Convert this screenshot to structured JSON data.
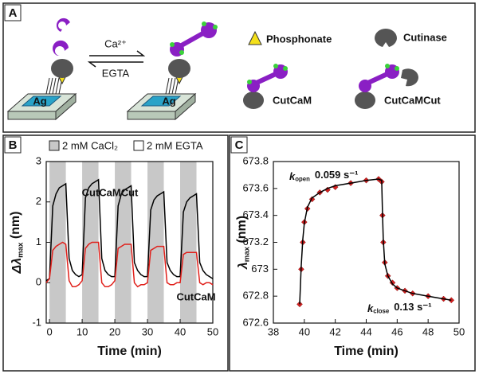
{
  "diagram": {
    "panel_label": "A",
    "forward": "Ca²⁺",
    "reverse": "EGTA",
    "surface_left": "Ag",
    "surface_right": "Ag",
    "legend": [
      "Phosphonate",
      "Cutinase",
      "CutCaM",
      "CutCaMCut"
    ]
  },
  "chart_data": [
    {
      "type": "line",
      "panel_label": "B",
      "x_label": "Time (min)",
      "y_label": {
        "symbol": "Δλ",
        "subscript": "max",
        "suffix": " (nm)"
      },
      "xlim": [
        -1,
        50
      ],
      "xticks": [
        0,
        10,
        20,
        30,
        40,
        50
      ],
      "ylim": [
        -1,
        3
      ],
      "yticks": [
        -1,
        0,
        1,
        2,
        3
      ],
      "shaded_bands": [
        {
          "start": 0,
          "end": 5
        },
        {
          "start": 10,
          "end": 15
        },
        {
          "start": 20,
          "end": 25
        },
        {
          "start": 30,
          "end": 35
        },
        {
          "start": 40,
          "end": 45
        }
      ],
      "shade_color": "#c8c8c8",
      "shade_label": "2 mM CaCl₂",
      "clear_label": "2 mM EGTA",
      "x": [
        -1,
        0,
        1,
        2,
        3,
        4,
        5,
        6,
        7,
        8,
        9,
        10,
        11,
        12,
        13,
        14,
        15,
        16,
        17,
        18,
        19,
        20,
        21,
        22,
        23,
        24,
        25,
        26,
        27,
        28,
        29,
        30,
        31,
        32,
        33,
        34,
        35,
        36,
        37,
        38,
        39,
        40,
        41,
        42,
        43,
        44,
        45,
        46,
        47,
        48,
        49,
        50
      ],
      "series": [
        {
          "name": "CutCaMCut",
          "color": "#000000",
          "values": [
            0.05,
            0.1,
            1.9,
            2.2,
            2.35,
            2.4,
            2.45,
            0.6,
            0.3,
            0.2,
            0.15,
            0.2,
            2.1,
            2.35,
            2.45,
            2.5,
            2.55,
            0.6,
            0.3,
            0.2,
            0.15,
            0.15,
            1.9,
            2.2,
            2.3,
            2.35,
            2.4,
            0.5,
            0.3,
            0.2,
            0.15,
            0.15,
            1.8,
            2.05,
            2.15,
            2.2,
            2.25,
            0.5,
            0.3,
            0.2,
            0.15,
            0.15,
            1.75,
            2.0,
            2.1,
            2.15,
            2.2,
            0.5,
            0.3,
            0.2,
            0.15,
            0.1
          ]
        },
        {
          "name": "CutCaM",
          "color": "#e0201b",
          "values": [
            0.0,
            0.1,
            0.8,
            0.9,
            0.95,
            1.0,
            0.95,
            0.05,
            -0.1,
            -0.1,
            -0.05,
            0.05,
            0.85,
            0.95,
            1.0,
            1.0,
            1.0,
            0.0,
            -0.1,
            -0.1,
            -0.05,
            0.05,
            0.85,
            0.9,
            0.95,
            0.95,
            0.95,
            0.0,
            -0.1,
            -0.05,
            -0.05,
            0.0,
            0.8,
            0.85,
            0.9,
            0.9,
            0.9,
            0.0,
            -0.05,
            -0.05,
            0.0,
            0.0,
            0.7,
            0.75,
            0.75,
            0.75,
            0.75,
            0.0,
            -0.05,
            0.0,
            0.0,
            -0.05
          ]
        }
      ]
    },
    {
      "type": "scatter",
      "panel_label": "C",
      "x_label": "Time (min)",
      "y_label": {
        "symbol": "λ",
        "subscript": "max",
        "suffix": " (nm)"
      },
      "xlim": [
        38,
        50
      ],
      "xticks": [
        38,
        40,
        42,
        44,
        46,
        48,
        50
      ],
      "ylim": [
        672.6,
        673.8
      ],
      "yticks": [
        672.6,
        672.8,
        673,
        673.2,
        673.4,
        673.6,
        673.8
      ],
      "annotations": [
        {
          "symbol": "k",
          "subscript": "open",
          "text": "0.059 s⁻¹"
        },
        {
          "symbol": "k",
          "subscript": "close",
          "text": "0.13 s⁻¹"
        }
      ],
      "x": [
        39.7,
        39.8,
        39.9,
        40.0,
        40.2,
        40.5,
        41,
        41.5,
        42,
        43,
        44,
        44.8,
        45,
        45.05,
        45.1,
        45.2,
        45.4,
        45.7,
        46,
        46.5,
        47,
        48,
        49,
        49.5
      ],
      "series": [
        {
          "style": "markers",
          "color": "#d42020",
          "values": [
            672.74,
            673.0,
            673.2,
            673.35,
            673.45,
            673.52,
            673.57,
            673.59,
            673.61,
            673.64,
            673.66,
            673.67,
            673.65,
            673.4,
            673.2,
            673.05,
            672.95,
            672.9,
            672.86,
            672.84,
            672.82,
            672.8,
            672.78,
            672.77
          ]
        },
        {
          "style": "line",
          "color": "#000000",
          "values": [
            672.74,
            673.02,
            673.22,
            673.34,
            673.46,
            673.53,
            673.57,
            673.6,
            673.62,
            673.64,
            673.66,
            673.67,
            673.66,
            673.42,
            673.22,
            673.04,
            672.95,
            672.89,
            672.86,
            672.84,
            672.82,
            672.8,
            672.78,
            672.77
          ]
        }
      ]
    }
  ]
}
